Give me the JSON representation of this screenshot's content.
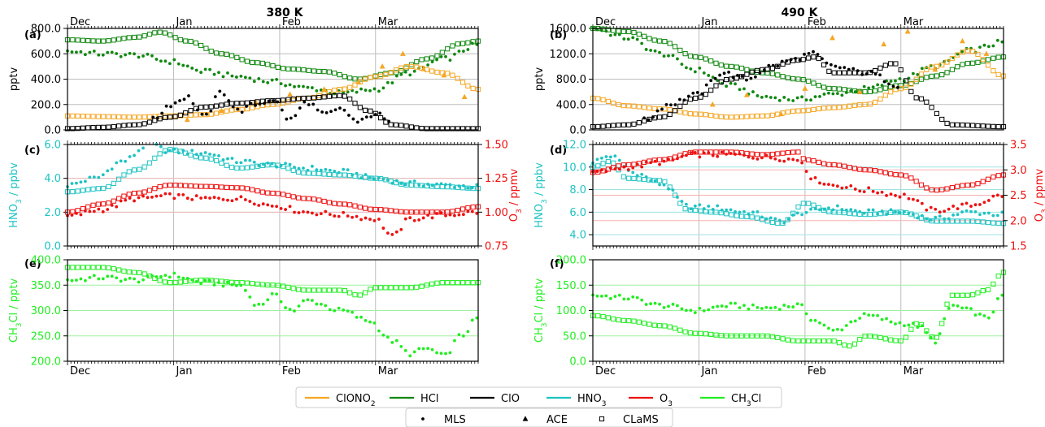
{
  "figure": {
    "column_titles": [
      "380 K",
      "490 K"
    ],
    "months": [
      "Dec",
      "Jan",
      "Feb",
      "Mar"
    ],
    "legend_species": [
      {
        "key": "ClONO2",
        "base": "ClONO",
        "sub": "2",
        "tail": "",
        "color": "#f5a623"
      },
      {
        "key": "HCl",
        "base": "HCl",
        "sub": "",
        "tail": "",
        "color": "#108810"
      },
      {
        "key": "ClO",
        "base": "ClO",
        "sub": "",
        "tail": "",
        "color": "#000000"
      },
      {
        "key": "HNO3",
        "base": "HNO",
        "sub": "3",
        "tail": "",
        "color": "#1fc3c3"
      },
      {
        "key": "O3",
        "base": "O",
        "sub": "3",
        "tail": "",
        "color": "#ee1111"
      },
      {
        "key": "CH3Cl",
        "base": "CH",
        "sub": "3",
        "tail": "Cl",
        "color": "#22ee22"
      }
    ],
    "legend_instruments": [
      {
        "label": "MLS",
        "marker": "dot"
      },
      {
        "label": "ACE",
        "marker": "triangle"
      },
      {
        "label": "CLaMS",
        "marker": "square"
      }
    ]
  },
  "chart_data": [
    {
      "panel": "(a)",
      "column_title": "380 K",
      "type": "scatter",
      "ylabel": "pptv",
      "ylim": [
        0,
        800
      ],
      "yticks": [
        "0.0",
        "200.0",
        "400.0",
        "600.0",
        "800.0"
      ],
      "x_range_days": [
        0,
        120
      ],
      "series": [
        {
          "key": "HCl",
          "instrument": "CLaMS",
          "color": "#108810",
          "marker": "square",
          "x": [
            0,
            10,
            20,
            27,
            35,
            45,
            55,
            65,
            75,
            85,
            95,
            105,
            115,
            120
          ],
          "y": [
            710,
            700,
            730,
            770,
            700,
            600,
            530,
            480,
            460,
            400,
            450,
            560,
            680,
            700
          ]
        },
        {
          "key": "HCl",
          "instrument": "MLS",
          "color": "#108810",
          "marker": "dot",
          "x": [
            0,
            10,
            20,
            30,
            40,
            50,
            60,
            70,
            80,
            90,
            100,
            110,
            120
          ],
          "y": [
            620,
            600,
            590,
            540,
            460,
            420,
            380,
            330,
            290,
            320,
            450,
            560,
            670
          ]
        },
        {
          "key": "ClONO2",
          "instrument": "CLaMS",
          "color": "#f5a623",
          "marker": "square",
          "x": [
            0,
            10,
            20,
            30,
            40,
            50,
            60,
            70,
            80,
            90,
            100,
            110,
            120
          ],
          "y": [
            110,
            105,
            100,
            110,
            120,
            160,
            200,
            250,
            320,
            420,
            500,
            450,
            320
          ]
        },
        {
          "key": "ClONO2",
          "instrument": "ACE",
          "color": "#f5a623",
          "marker": "triangle",
          "x": [
            35,
            45,
            55,
            65,
            75,
            85,
            92,
            98,
            104,
            110,
            116
          ],
          "y": [
            80,
            150,
            220,
            280,
            320,
            380,
            500,
            600,
            480,
            430,
            260
          ]
        },
        {
          "key": "ClO",
          "instrument": "CLaMS",
          "color": "#000000",
          "marker": "square",
          "x": [
            0,
            10,
            20,
            30,
            40,
            50,
            60,
            70,
            80,
            88,
            95,
            105,
            120
          ],
          "y": [
            10,
            20,
            40,
            100,
            180,
            210,
            230,
            250,
            270,
            150,
            40,
            10,
            10
          ]
        },
        {
          "key": "ClO",
          "instrument": "MLS",
          "color": "#000000",
          "marker": "dot",
          "x": [
            25,
            30,
            35,
            40,
            45,
            50,
            55,
            60,
            65,
            70,
            75,
            80,
            85,
            90,
            95
          ],
          "y": [
            80,
            200,
            260,
            100,
            300,
            150,
            200,
            240,
            80,
            220,
            120,
            160,
            60,
            130,
            40
          ]
        }
      ]
    },
    {
      "panel": "(b)",
      "column_title": "490 K",
      "type": "scatter",
      "ylabel": "pptv",
      "ylim": [
        0,
        1600
      ],
      "yticks": [
        "0.0",
        "400.0",
        "800.0",
        "1200.0",
        "1600.0"
      ],
      "x_range_days": [
        0,
        120
      ],
      "series": [
        {
          "key": "HCl",
          "instrument": "CLaMS",
          "color": "#108810",
          "marker": "square",
          "x": [
            0,
            10,
            20,
            30,
            40,
            50,
            60,
            70,
            80,
            90,
            100,
            110,
            120
          ],
          "y": [
            1600,
            1550,
            1400,
            1150,
            1000,
            900,
            800,
            650,
            600,
            700,
            850,
            1050,
            1150
          ]
        },
        {
          "key": "HCl",
          "instrument": "MLS",
          "color": "#108810",
          "marker": "dot",
          "x": [
            0,
            10,
            20,
            30,
            40,
            50,
            60,
            70,
            80,
            90,
            100,
            110,
            120
          ],
          "y": [
            1600,
            1450,
            1200,
            950,
            700,
            520,
            480,
            560,
            650,
            800,
            1000,
            1250,
            1380
          ]
        },
        {
          "key": "ClONO2",
          "instrument": "CLaMS",
          "color": "#f5a623",
          "marker": "square",
          "x": [
            0,
            10,
            20,
            30,
            40,
            50,
            60,
            70,
            80,
            90,
            100,
            110,
            120
          ],
          "y": [
            500,
            380,
            330,
            250,
            200,
            220,
            300,
            350,
            400,
            650,
            1000,
            1250,
            850
          ]
        },
        {
          "key": "ClONO2",
          "instrument": "ACE",
          "color": "#f5a623",
          "marker": "triangle",
          "x": [
            35,
            45,
            55,
            62,
            70,
            78,
            85,
            92,
            100,
            108,
            115
          ],
          "y": [
            400,
            550,
            250,
            650,
            1450,
            600,
            1350,
            1550,
            950,
            1400,
            1200
          ]
        },
        {
          "key": "ClO",
          "instrument": "CLaMS",
          "color": "#000000",
          "marker": "square",
          "x": [
            0,
            10,
            20,
            30,
            40,
            50,
            60,
            65,
            70,
            80,
            88,
            95,
            105,
            120
          ],
          "y": [
            50,
            80,
            200,
            500,
            800,
            950,
            1100,
            1150,
            900,
            900,
            1050,
            500,
            80,
            50
          ]
        },
        {
          "key": "ClO",
          "instrument": "MLS",
          "color": "#000000",
          "marker": "dot",
          "x": [
            15,
            22,
            30,
            38,
            45,
            52,
            58,
            64,
            70,
            80,
            90
          ],
          "y": [
            150,
            400,
            550,
            900,
            800,
            1000,
            1100,
            1200,
            1000,
            900,
            700
          ]
        }
      ]
    },
    {
      "panel": "(c)",
      "type": "scatter",
      "ylabel_left": "HNO3 / ppbv",
      "ylim_left": [
        0,
        6
      ],
      "yticks_left": [
        "0.0",
        "2.0",
        "4.0",
        "6.0"
      ],
      "ylabel_right": "O3 / ppmv",
      "ylim_right": [
        0.75,
        1.5
      ],
      "yticks_right": [
        "0.75",
        "1.00",
        "1.25",
        "1.50"
      ],
      "x_range_days": [
        0,
        120
      ],
      "series": [
        {
          "key": "HNO3",
          "instrument": "MLS",
          "axis": "left",
          "color": "#1fc3c3",
          "marker": "dot",
          "x": [
            0,
            8,
            16,
            24,
            30,
            40,
            50,
            60,
            70,
            80,
            90,
            100,
            110,
            120
          ],
          "y": [
            3.6,
            4.0,
            5.0,
            6.0,
            5.6,
            5.5,
            5.0,
            4.8,
            4.6,
            4.4,
            4.0,
            3.7,
            3.6,
            3.5
          ]
        },
        {
          "key": "HNO3",
          "instrument": "CLaMS",
          "axis": "left",
          "color": "#1fc3c3",
          "marker": "square",
          "x": [
            0,
            10,
            20,
            30,
            40,
            50,
            60,
            70,
            80,
            90,
            100,
            110,
            120
          ],
          "y": [
            3.2,
            3.4,
            4.5,
            5.7,
            5.2,
            4.6,
            4.8,
            4.3,
            4.2,
            4.0,
            3.6,
            3.5,
            3.4
          ]
        },
        {
          "key": "O3",
          "instrument": "CLaMS",
          "axis": "right",
          "color": "#ee1111",
          "marker": "square",
          "x": [
            0,
            10,
            20,
            30,
            40,
            50,
            60,
            70,
            80,
            90,
            100,
            110,
            120
          ],
          "y": [
            1.0,
            1.06,
            1.14,
            1.2,
            1.19,
            1.18,
            1.14,
            1.1,
            1.06,
            1.02,
            1.0,
            1.0,
            1.04
          ]
        },
        {
          "key": "O3",
          "instrument": "MLS",
          "axis": "right",
          "color": "#ee1111",
          "marker": "dot",
          "x": [
            0,
            10,
            20,
            30,
            40,
            50,
            60,
            70,
            80,
            90,
            95,
            100,
            110,
            120
          ],
          "y": [
            0.97,
            1.02,
            1.1,
            1.12,
            1.1,
            1.1,
            1.05,
            1.0,
            0.98,
            0.95,
            0.82,
            0.95,
            0.98,
            1.0
          ]
        }
      ]
    },
    {
      "panel": "(d)",
      "type": "scatter",
      "ylabel_left": "HNO3 / ppbv",
      "ylim_left": [
        3,
        12
      ],
      "yticks_left": [
        "4.0",
        "6.0",
        "8.0",
        "10.0",
        "12.0"
      ],
      "ylabel_right": "O3 / ppmv",
      "ylim_right": [
        1.5,
        3.5
      ],
      "yticks_right": [
        "1.5",
        "2.0",
        "2.5",
        "3.0",
        "3.5"
      ],
      "x_range_days": [
        0,
        120
      ],
      "series": [
        {
          "key": "HNO3",
          "instrument": "MLS",
          "axis": "left",
          "color": "#1fc3c3",
          "marker": "dot",
          "x": [
            0,
            5,
            12,
            20,
            28,
            35,
            45,
            55,
            62,
            70,
            80,
            90,
            100,
            110,
            120
          ],
          "y": [
            10.5,
            11.0,
            9.5,
            8.5,
            6.5,
            6.4,
            6.0,
            5.2,
            6.0,
            6.4,
            6.0,
            6.0,
            5.4,
            6.0,
            5.8
          ]
        },
        {
          "key": "HNO3",
          "instrument": "CLaMS",
          "axis": "left",
          "color": "#1fc3c3",
          "marker": "square",
          "x": [
            0,
            5,
            10,
            20,
            28,
            35,
            45,
            55,
            62,
            70,
            80,
            90,
            100,
            110,
            120
          ],
          "y": [
            10.0,
            10.5,
            9.0,
            8.8,
            6.2,
            6.0,
            5.6,
            5.0,
            6.8,
            6.0,
            5.8,
            6.0,
            5.2,
            5.2,
            5.0
          ]
        },
        {
          "key": "O3",
          "instrument": "CLaMS",
          "axis": "right",
          "color": "#ee1111",
          "marker": "square",
          "x": [
            0,
            10,
            20,
            30,
            40,
            50,
            60,
            62,
            70,
            80,
            90,
            100,
            110,
            120
          ],
          "y": [
            2.95,
            3.1,
            3.2,
            3.35,
            3.35,
            3.3,
            3.35,
            3.2,
            3.1,
            3.0,
            2.9,
            2.6,
            2.7,
            2.9
          ]
        },
        {
          "key": "O3",
          "instrument": "MLS",
          "axis": "right",
          "color": "#ee1111",
          "marker": "dot",
          "x": [
            0,
            10,
            20,
            30,
            40,
            50,
            60,
            65,
            70,
            80,
            90,
            100,
            110,
            120
          ],
          "y": [
            2.95,
            3.05,
            3.15,
            3.3,
            3.3,
            3.25,
            3.2,
            2.8,
            2.7,
            2.6,
            2.5,
            2.2,
            2.3,
            2.5
          ]
        }
      ]
    },
    {
      "panel": "(e)",
      "type": "scatter",
      "ylabel": "CH3Cl / pptv",
      "ylim": [
        200,
        400
      ],
      "yticks": [
        "200.0",
        "250.0",
        "300.0",
        "350.0",
        "400.0"
      ],
      "x_range_days": [
        0,
        120
      ],
      "series": [
        {
          "key": "CH3Cl",
          "instrument": "CLaMS",
          "color": "#22ee22",
          "marker": "square",
          "x": [
            0,
            10,
            20,
            30,
            40,
            50,
            60,
            70,
            80,
            85,
            90,
            100,
            110,
            120
          ],
          "y": [
            385,
            385,
            375,
            355,
            360,
            355,
            350,
            340,
            340,
            330,
            345,
            345,
            355,
            355
          ]
        },
        {
          "key": "CH3Cl",
          "instrument": "MLS",
          "color": "#22ee22",
          "marker": "dot",
          "x": [
            0,
            10,
            20,
            30,
            40,
            50,
            56,
            60,
            66,
            70,
            80,
            88,
            95,
            100,
            105,
            110,
            115,
            120
          ],
          "y": [
            360,
            365,
            360,
            370,
            355,
            350,
            310,
            330,
            300,
            320,
            300,
            280,
            240,
            215,
            225,
            210,
            250,
            285
          ]
        }
      ]
    },
    {
      "panel": "(f)",
      "type": "scatter",
      "ylabel": "CH3Cl / pptv",
      "ylim": [
        0,
        200
      ],
      "yticks": [
        "0.0",
        "50.0",
        "100.0",
        "150.0",
        "200.0"
      ],
      "x_range_days": [
        0,
        120
      ],
      "series": [
        {
          "key": "CH3Cl",
          "instrument": "CLaMS",
          "color": "#22ee22",
          "marker": "square",
          "x": [
            0,
            10,
            20,
            30,
            40,
            50,
            60,
            70,
            75,
            80,
            90,
            95,
            100,
            105,
            110,
            115,
            120
          ],
          "y": [
            90,
            80,
            70,
            55,
            50,
            50,
            40,
            40,
            30,
            50,
            40,
            75,
            45,
            130,
            130,
            140,
            175
          ]
        },
        {
          "key": "CH3Cl",
          "instrument": "MLS",
          "color": "#22ee22",
          "marker": "dot",
          "x": [
            0,
            10,
            20,
            30,
            40,
            50,
            60,
            65,
            70,
            80,
            90,
            95,
            100,
            105,
            110,
            115,
            120
          ],
          "y": [
            130,
            125,
            110,
            100,
            110,
            105,
            110,
            80,
            60,
            90,
            75,
            70,
            40,
            110,
            100,
            85,
            130
          ]
        }
      ]
    }
  ]
}
